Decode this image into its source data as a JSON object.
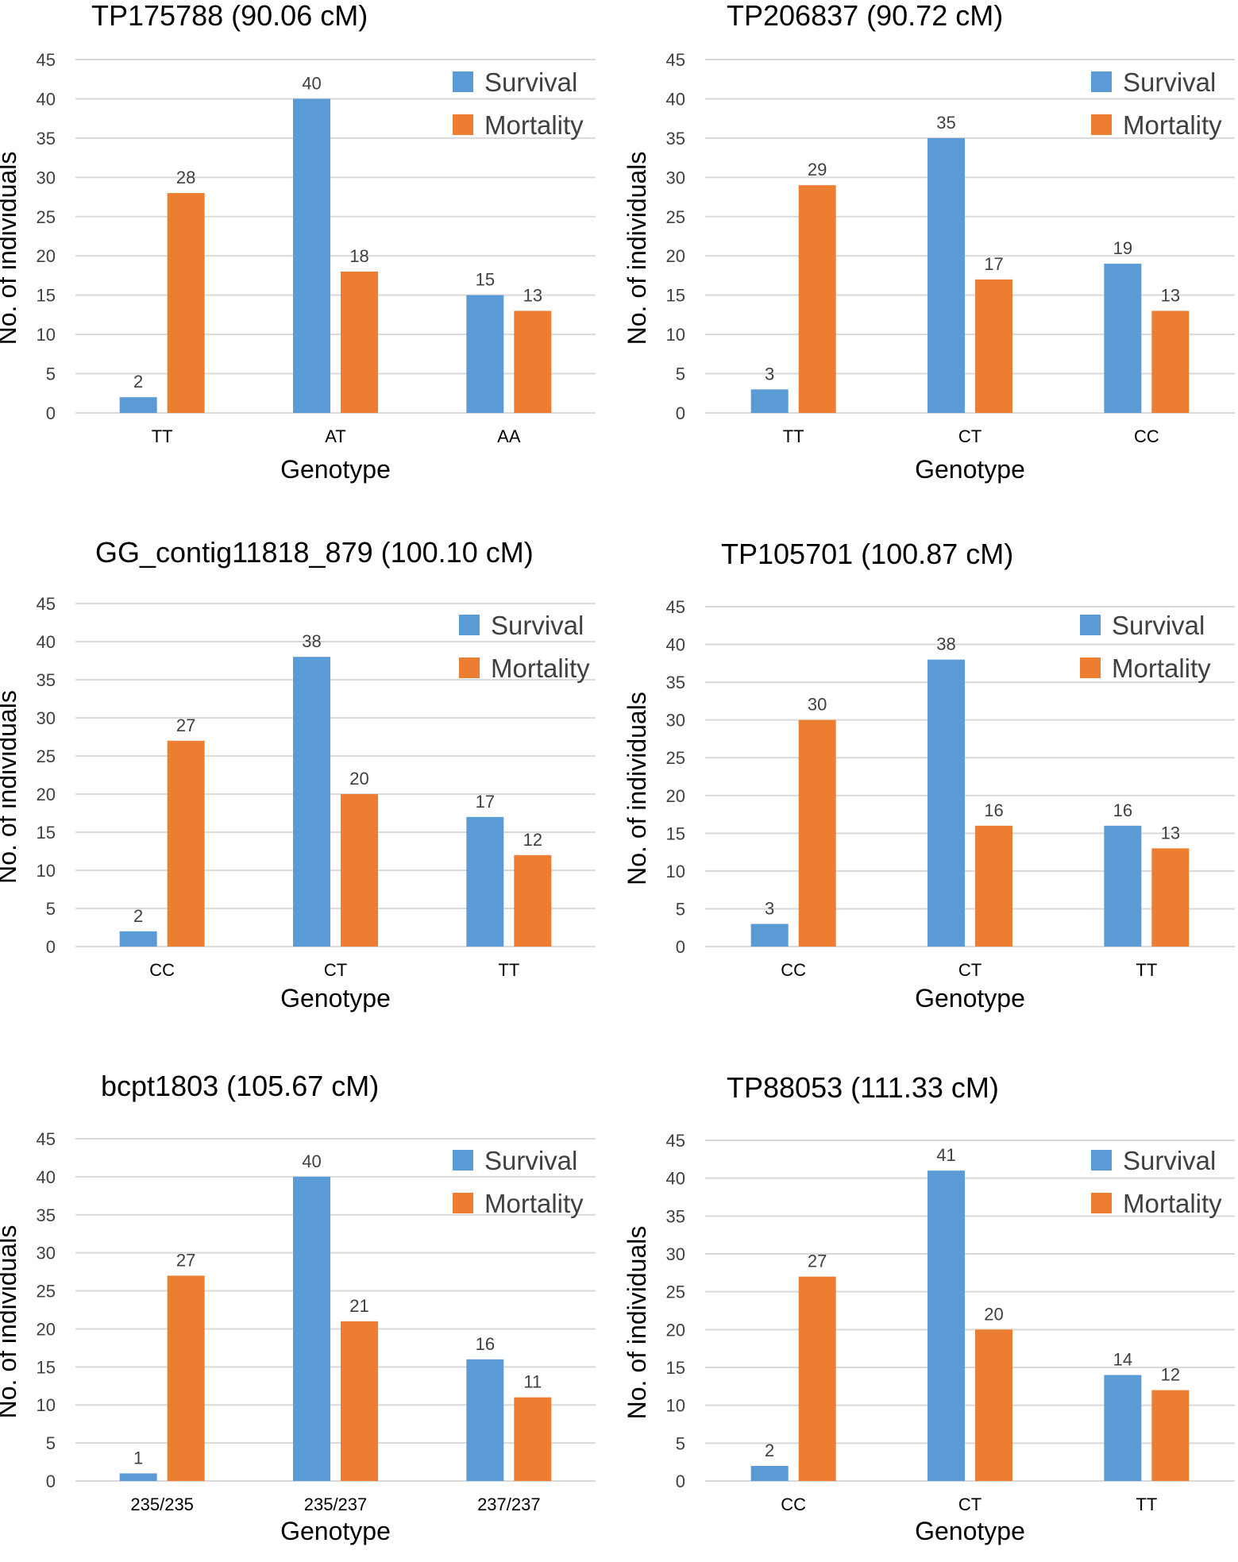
{
  "colors": {
    "survival": "#5b9bd5",
    "mortality": "#ed7d31",
    "grid": "#d9d9d9",
    "text": "#000000",
    "axis_text": "#404040"
  },
  "chart_data": [
    {
      "type": "bar",
      "title": "TP175788 (90.06 cM)",
      "xlabel": "Genotype",
      "ylabel": "No. of individuals",
      "categories": [
        "TT",
        "AT",
        "AA"
      ],
      "series": [
        {
          "name": "Survival",
          "values": [
            2,
            40,
            15
          ]
        },
        {
          "name": "Mortality",
          "values": [
            28,
            18,
            13
          ]
        }
      ],
      "ylim": [
        0,
        45
      ],
      "yticks": [
        "0",
        "5",
        "10",
        "15",
        "20",
        "25",
        "30",
        "35",
        "40",
        "45"
      ],
      "grid": true,
      "legend": "top-right"
    },
    {
      "type": "bar",
      "title": "TP206837 (90.72 cM)",
      "xlabel": "Genotype",
      "ylabel": "No. of individuals",
      "categories": [
        "TT",
        "CT",
        "CC"
      ],
      "series": [
        {
          "name": "Survival",
          "values": [
            3,
            35,
            19
          ]
        },
        {
          "name": "Mortality",
          "values": [
            29,
            17,
            13
          ]
        }
      ],
      "ylim": [
        0,
        45
      ],
      "yticks": [
        "0",
        "5",
        "10",
        "15",
        "20",
        "25",
        "30",
        "35",
        "40",
        "45"
      ],
      "grid": true,
      "legend": "top-right"
    },
    {
      "type": "bar",
      "title": "GG_contig11818_879 (100.10 cM)",
      "xlabel": "Genotype",
      "ylabel": "No. of individuals",
      "categories": [
        "CC",
        "CT",
        "TT"
      ],
      "series": [
        {
          "name": "Survival",
          "values": [
            2,
            38,
            17
          ]
        },
        {
          "name": "Mortality",
          "values": [
            27,
            20,
            12
          ]
        }
      ],
      "ylim": [
        0,
        45
      ],
      "yticks": [
        "0",
        "5",
        "10",
        "15",
        "20",
        "25",
        "30",
        "35",
        "40",
        "45"
      ],
      "grid": true,
      "legend": "top-right"
    },
    {
      "type": "bar",
      "title": "TP105701 (100.87 cM)",
      "xlabel": "Genotype",
      "ylabel": "No. of individuals",
      "categories": [
        "CC",
        "CT",
        "TT"
      ],
      "series": [
        {
          "name": "Survival",
          "values": [
            3,
            38,
            16
          ]
        },
        {
          "name": "Mortality",
          "values": [
            30,
            16,
            13
          ]
        }
      ],
      "ylim": [
        0,
        45
      ],
      "yticks": [
        "0",
        "5",
        "10",
        "15",
        "20",
        "25",
        "30",
        "35",
        "40",
        "45"
      ],
      "grid": true,
      "legend": "top-right"
    },
    {
      "type": "bar",
      "title": "bcpt1803 (105.67 cM)",
      "xlabel": "Genotype",
      "ylabel": "No. of individuals",
      "categories": [
        "235/235",
        "235/237",
        "237/237"
      ],
      "series": [
        {
          "name": "Survival",
          "values": [
            1,
            40,
            16
          ]
        },
        {
          "name": "Mortality",
          "values": [
            27,
            21,
            11
          ]
        }
      ],
      "ylim": [
        0,
        45
      ],
      "yticks": [
        "0",
        "5",
        "10",
        "15",
        "20",
        "25",
        "30",
        "35",
        "40",
        "45"
      ],
      "grid": true,
      "legend": "top-right"
    },
    {
      "type": "bar",
      "title": "TP88053 (111.33 cM)",
      "xlabel": "Genotype",
      "ylabel": "No. of individuals",
      "categories": [
        "CC",
        "CT",
        "TT"
      ],
      "series": [
        {
          "name": "Survival",
          "values": [
            2,
            41,
            14
          ]
        },
        {
          "name": "Mortality",
          "values": [
            27,
            20,
            12
          ]
        }
      ],
      "ylim": [
        0,
        45
      ],
      "yticks": [
        "0",
        "5",
        "10",
        "15",
        "20",
        "25",
        "30",
        "35",
        "40",
        "45"
      ],
      "grid": true,
      "legend": "top-right"
    }
  ]
}
